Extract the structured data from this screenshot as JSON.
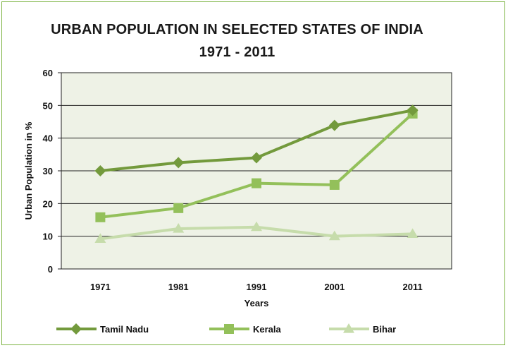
{
  "chart_data": {
    "type": "line",
    "title": "URBAN POPULATION IN SELECTED STATES OF INDIA",
    "subtitle": "1971 - 2011",
    "xlabel": "Years",
    "ylabel": "Urban Population in %",
    "categories": [
      "1971",
      "1981",
      "1991",
      "2001",
      "2011"
    ],
    "ylim": [
      0,
      60
    ],
    "yticks": [
      0,
      10,
      20,
      30,
      40,
      50,
      60
    ],
    "grid": true,
    "legend_position": "bottom",
    "series": [
      {
        "name": "Tamil Nadu",
        "marker": "diamond",
        "color": "#739a3c",
        "values": [
          30.0,
          32.5,
          34.0,
          43.9,
          48.5
        ]
      },
      {
        "name": "Kerala",
        "marker": "square",
        "color": "#93c05a",
        "values": [
          15.8,
          18.6,
          26.2,
          25.7,
          47.5
        ]
      },
      {
        "name": "Bihar",
        "marker": "triangle",
        "color": "#c6dcab",
        "values": [
          9.2,
          12.3,
          12.8,
          10.0,
          10.7
        ]
      }
    ],
    "colors": {
      "plot_background": "#eef2e6",
      "frame": "#7cb342"
    }
  }
}
